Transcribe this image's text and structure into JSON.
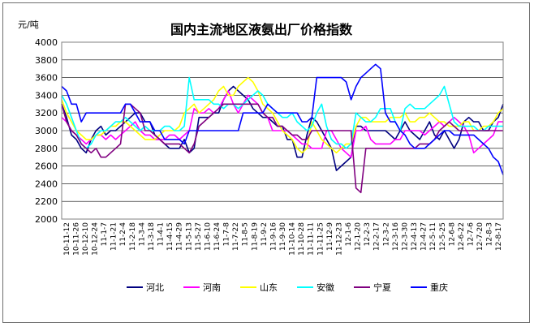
{
  "chart_data": {
    "type": "line",
    "title": "国内主流地区液氨出厂价格指数",
    "ylabel": "元/吨",
    "xlabel": "",
    "ylim": [
      2000,
      4000
    ],
    "yticks": [
      2000,
      2200,
      2400,
      2600,
      2800,
      3000,
      3200,
      3400,
      3600,
      3800,
      4000
    ],
    "grid": true,
    "legend_position": "bottom",
    "x_tick_labels": [
      "10-11-12",
      "10-11-26",
      "10-12-10",
      "10-12-24",
      "11-1-7",
      "11-1-21",
      "11-2-4",
      "11-2-18",
      "11-3-4",
      "11-3-18",
      "11-4-1",
      "11-4-15",
      "11-4-29",
      "11-5-13",
      "11-5-27",
      "11-6-10",
      "11-6-24",
      "11-7-8",
      "11-7-22",
      "11-8-5",
      "11-8-19",
      "11-9-2",
      "11-9-16",
      "11-9-30",
      "11-10-14",
      "11-10-28",
      "11-11-11",
      "11-11-25",
      "11-12-9",
      "11-12-23",
      "12-1-6",
      "12-1-20",
      "12-2-3",
      "12-2-17",
      "12-3-2",
      "12-3-16",
      "12-3-30",
      "12-4-13",
      "12-4-27",
      "12-5-11",
      "12-5-25",
      "12-6-8",
      "12-6-22",
      "12-7-6",
      "12-7-20",
      "12-8-3",
      "12-8-17"
    ],
    "series": [
      {
        "name": "河北",
        "color": "#000080",
        "values": [
          3300,
          3150,
          2950,
          2900,
          2800,
          2750,
          2900,
          3000,
          3050,
          2950,
          3000,
          3000,
          3050,
          3100,
          3150,
          3200,
          3200,
          3100,
          3100,
          2950,
          2900,
          2850,
          2800,
          2800,
          2800,
          2900,
          2750,
          2800,
          3150,
          3150,
          3150,
          3200,
          3200,
          3350,
          3450,
          3500,
          3450,
          3400,
          3350,
          3250,
          3200,
          3150,
          3150,
          3100,
          3050,
          3050,
          2900,
          2900,
          2700,
          2700,
          2950,
          3150,
          3100,
          3000,
          2900,
          2800,
          2550,
          2600,
          2650,
          2700,
          3050,
          3050,
          3000,
          3000,
          3000,
          3000,
          3000,
          2950,
          2900,
          3000,
          3100,
          3000,
          2950,
          2900,
          3000,
          3100,
          2950,
          2900,
          3000,
          2900,
          2800,
          2900,
          3100,
          3150,
          3100,
          3100,
          3000,
          3000,
          3100,
          3150,
          3300
        ]
      },
      {
        "name": "河南",
        "color": "#ff00ff",
        "values": [
          3150,
          3100,
          3000,
          2950,
          2900,
          2850,
          2900,
          2950,
          2950,
          2900,
          2950,
          2900,
          2950,
          3000,
          3050,
          3100,
          3000,
          2950,
          2950,
          2900,
          2900,
          2900,
          2950,
          2950,
          2900,
          2950,
          3000,
          3250,
          3200,
          3200,
          3250,
          3200,
          3250,
          3350,
          3450,
          3300,
          3200,
          3300,
          3400,
          3350,
          3300,
          3200,
          3150,
          3000,
          3000,
          3000,
          3000,
          2950,
          2900,
          2850,
          2850,
          2800,
          2800,
          2800,
          3000,
          3000,
          2900,
          2800,
          2750,
          2700,
          3000,
          3000,
          3050,
          2900,
          2850,
          2850,
          2850,
          2850,
          2900,
          2900,
          3000,
          3000,
          3000,
          3000,
          2950,
          3000,
          3050,
          3100,
          3050,
          3100,
          3150,
          3100,
          3050,
          2950,
          2750,
          2800,
          2850,
          2900,
          2950,
          3100,
          3100
        ]
      },
      {
        "name": "山东",
        "color": "#ffff00",
        "values": [
          3350,
          3200,
          3100,
          3000,
          2950,
          2900,
          2900,
          2950,
          2950,
          3000,
          3050,
          3050,
          3100,
          3100,
          3050,
          3000,
          2950,
          2900,
          2900,
          2900,
          2950,
          3000,
          3000,
          3000,
          3050,
          3200,
          3250,
          3300,
          3200,
          3250,
          3300,
          3350,
          3450,
          3500,
          3400,
          3400,
          3500,
          3550,
          3600,
          3550,
          3450,
          3300,
          3250,
          3200,
          3100,
          3000,
          2950,
          2900,
          2800,
          2750,
          2800,
          3100,
          3000,
          2900,
          2850,
          2800,
          2750,
          2800,
          2850,
          2850,
          3050,
          3150,
          3150,
          3100,
          3100,
          3100,
          3100,
          3150,
          3150,
          3150,
          3200,
          3100,
          3100,
          3150,
          3150,
          3200,
          3150,
          3100,
          3100,
          3050,
          3050,
          3050,
          3100,
          3100,
          3000,
          3000,
          3050,
          3050,
          3100,
          3200,
          3250
        ]
      },
      {
        "name": "安徽",
        "color": "#00ffff",
        "values": [
          3400,
          3300,
          3150,
          3000,
          2850,
          2800,
          2850,
          2950,
          3000,
          3000,
          3050,
          3100,
          3100,
          3150,
          3100,
          3050,
          3000,
          3050,
          3000,
          3000,
          3000,
          3050,
          3050,
          3000,
          3000,
          3050,
          3600,
          3350,
          3350,
          3350,
          3350,
          3300,
          3300,
          3250,
          3300,
          3300,
          3250,
          3300,
          3350,
          3400,
          3450,
          3400,
          3300,
          3250,
          3200,
          3150,
          3150,
          3200,
          3100,
          3050,
          3000,
          3050,
          3200,
          3300,
          3050,
          2900,
          2850,
          2850,
          2800,
          2850,
          3200,
          3150,
          3100,
          3100,
          3150,
          3250,
          3250,
          3250,
          3100,
          3000,
          3250,
          3300,
          3250,
          3250,
          3250,
          3300,
          3350,
          3400,
          3500,
          3300,
          3100,
          3050,
          3050,
          3050,
          3050,
          3000,
          3000,
          3050,
          3050,
          3050,
          3050
        ]
      },
      {
        "name": "宁夏",
        "color": "#800080",
        "values": [
          3300,
          3100,
          3000,
          2950,
          2850,
          2800,
          2750,
          2800,
          2700,
          2700,
          2750,
          2800,
          2850,
          3300,
          3300,
          3250,
          3200,
          3000,
          3000,
          2950,
          2900,
          2850,
          2850,
          2850,
          2850,
          2800,
          2750,
          2850,
          3050,
          3100,
          3150,
          3200,
          3250,
          3300,
          3300,
          3300,
          3300,
          3300,
          3300,
          3300,
          3300,
          3200,
          3150,
          3150,
          3050,
          3050,
          3000,
          2950,
          2950,
          2900,
          2900,
          3000,
          3000,
          3000,
          3000,
          3000,
          3000,
          3000,
          3000,
          3000,
          2350,
          2300,
          2800,
          2800,
          2800,
          2800,
          2800,
          2800,
          2800,
          2800,
          2800,
          2800,
          2800,
          2850,
          2850,
          2850,
          2900,
          3000,
          3050,
          3100,
          3050,
          3000,
          3000,
          3000,
          3000,
          3000,
          3000,
          3000,
          3000,
          3000,
          3000
        ]
      },
      {
        "name": "重庆",
        "color": "#0000ff",
        "values": [
          3500,
          3450,
          3300,
          3300,
          3100,
          3200,
          3200,
          3200,
          3200,
          3200,
          3200,
          3200,
          3200,
          3300,
          3300,
          3200,
          3100,
          3100,
          3100,
          3000,
          3000,
          2900,
          2900,
          2900,
          2900,
          2850,
          3000,
          3000,
          3000,
          3000,
          3000,
          3000,
          3000,
          3000,
          3000,
          3000,
          3000,
          3200,
          3200,
          3200,
          3200,
          3200,
          3300,
          3250,
          3200,
          3200,
          3200,
          3200,
          3200,
          3100,
          3100,
          3150,
          3600,
          3600,
          3600,
          3600,
          3600,
          3600,
          3550,
          3350,
          3500,
          3600,
          3650,
          3700,
          3750,
          3700,
          3200,
          3100,
          3100,
          3000,
          2950,
          2850,
          2800,
          2800,
          2800,
          2850,
          2900,
          2950,
          3000,
          3000,
          2950,
          2950,
          2950,
          2950,
          2950,
          2900,
          2850,
          2800,
          2700,
          2650,
          2500
        ]
      }
    ]
  }
}
